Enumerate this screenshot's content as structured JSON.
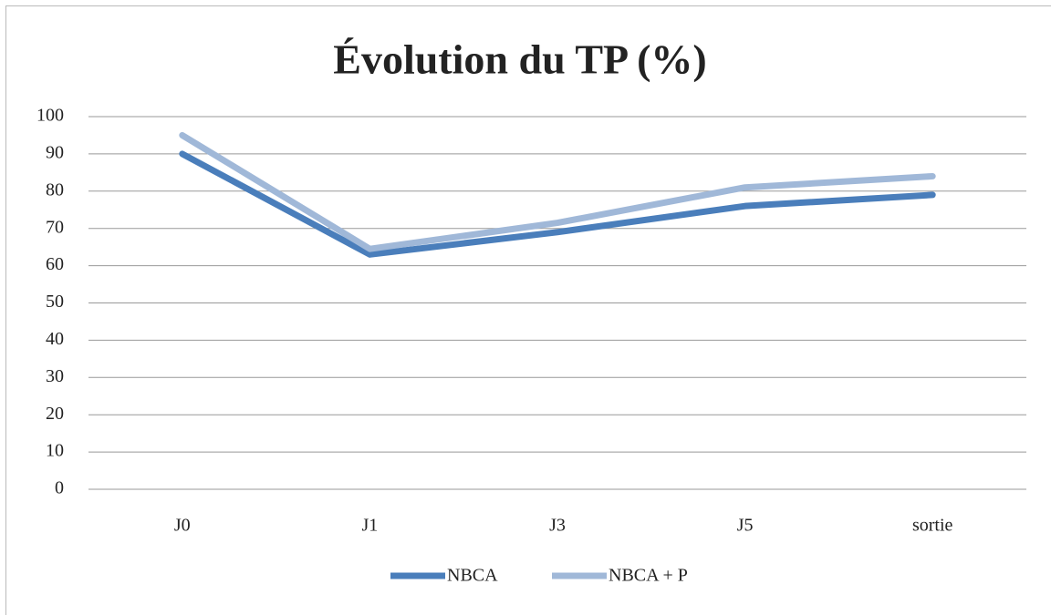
{
  "chart_data": {
    "type": "line",
    "title": "Évolution du TP (%)",
    "categories": [
      "J0",
      "J1",
      "J3",
      "J5",
      "sortie"
    ],
    "series": [
      {
        "name": "NBCA",
        "color": "#4a7ebb",
        "values": [
          90,
          63,
          69,
          76,
          79
        ]
      },
      {
        "name": "NBCA + P",
        "color": "#a0b8d8",
        "values": [
          95,
          64.5,
          71.5,
          81,
          84
        ]
      }
    ],
    "ylim": [
      0,
      100
    ],
    "yticks": [
      0,
      10,
      20,
      30,
      40,
      50,
      60,
      70,
      80,
      90,
      100
    ],
    "grid": true,
    "legend": "bottom"
  }
}
